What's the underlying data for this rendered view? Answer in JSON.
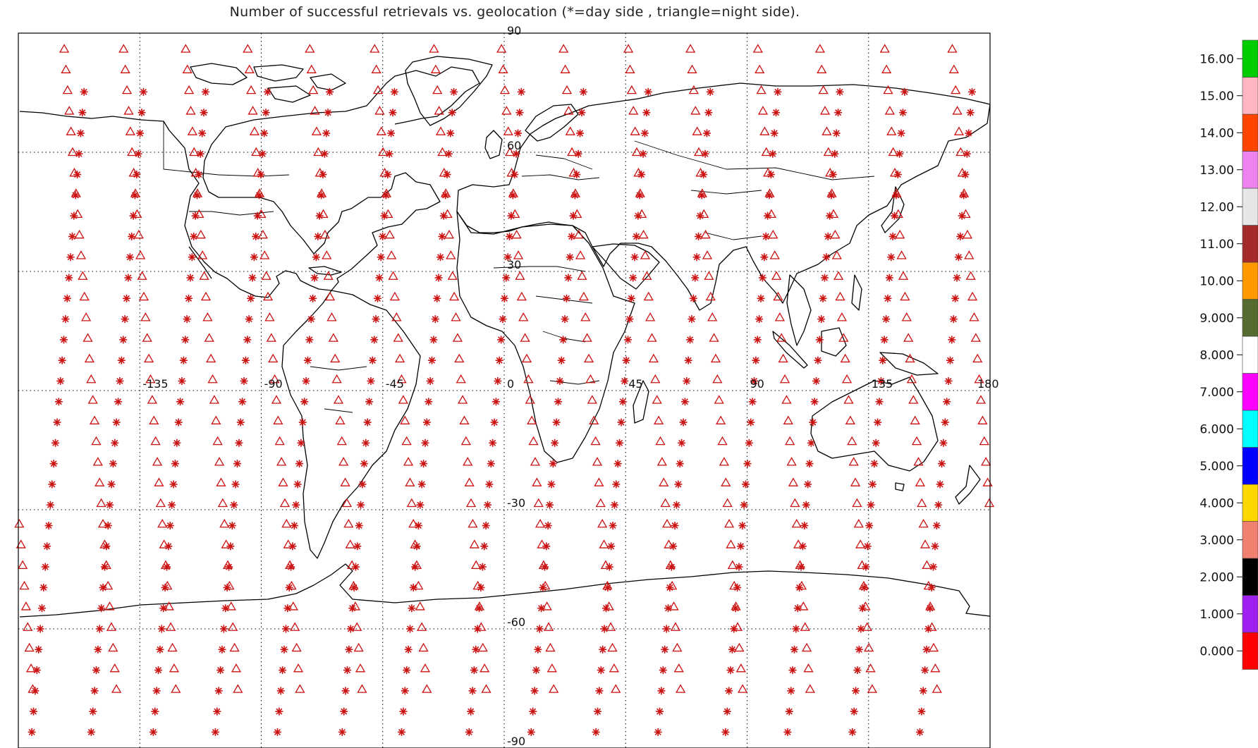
{
  "title": "Number of successful retrievals vs. geolocation (*=day side , triangle=night side).",
  "map": {
    "projection": "equirectangular",
    "lon_range": [
      -180,
      180
    ],
    "lat_range": [
      -90,
      90
    ],
    "grid": "dotted",
    "lon_tick_labels": [
      {
        "lon": -135,
        "text": "-135"
      },
      {
        "lon": -90,
        "text": "-90"
      },
      {
        "lon": -45,
        "text": "-45"
      },
      {
        "lon": 0,
        "text": "0"
      },
      {
        "lon": 45,
        "text": "45"
      },
      {
        "lon": 90,
        "text": "90"
      },
      {
        "lon": 135,
        "text": "135"
      },
      {
        "lon": 180,
        "text": "180"
      }
    ],
    "lat_tick_labels": [
      {
        "lat": 90,
        "text": "90"
      },
      {
        "lat": 60,
        "text": "60"
      },
      {
        "lat": 30,
        "text": "30"
      },
      {
        "lat": -30,
        "text": "-30"
      },
      {
        "lat": -60,
        "text": "-60"
      },
      {
        "lat": -90,
        "text": "-90"
      }
    ],
    "marker_color": "#cc1111",
    "markers": {
      "day": "asterisk",
      "night": "triangle"
    },
    "tracks": [
      {
        "lon": -172
      },
      {
        "lon": -150
      },
      {
        "lon": -127
      },
      {
        "lon": -104
      },
      {
        "lon": -81
      },
      {
        "lon": -57
      },
      {
        "lon": -35
      },
      {
        "lon": -10
      },
      {
        "lon": 13
      },
      {
        "lon": 37
      },
      {
        "lon": 60
      },
      {
        "lon": 85
      },
      {
        "lon": 108
      },
      {
        "lon": 132
      },
      {
        "lon": 157
      }
    ]
  },
  "colorbar": {
    "items": [
      {
        "value": 0,
        "label": "0.000",
        "color": "#ff0000"
      },
      {
        "value": 1,
        "label": "1.000",
        "color": "#a020f0"
      },
      {
        "value": 2,
        "label": "2.000",
        "color": "#000000"
      },
      {
        "value": 3,
        "label": "3.000",
        "color": "#f08070"
      },
      {
        "value": 4,
        "label": "4.000",
        "color": "#ffd700"
      },
      {
        "value": 5,
        "label": "5.000",
        "color": "#0000ff"
      },
      {
        "value": 6,
        "label": "6.000",
        "color": "#00ffff"
      },
      {
        "value": 7,
        "label": "7.000",
        "color": "#ff00ff"
      },
      {
        "value": 8,
        "label": "8.000",
        "color": "#ffffff"
      },
      {
        "value": 9,
        "label": "9.000",
        "color": "#556b2f"
      },
      {
        "value": 10,
        "label": "10.00",
        "color": "#ff9900"
      },
      {
        "value": 11,
        "label": "11.00",
        "color": "#a52a2a"
      },
      {
        "value": 12,
        "label": "12.00",
        "color": "#e6e6e6"
      },
      {
        "value": 13,
        "label": "13.00",
        "color": "#ee82ee"
      },
      {
        "value": 14,
        "label": "14.00",
        "color": "#ff4500"
      },
      {
        "value": 15,
        "label": "15.00",
        "color": "#ffb6c1"
      },
      {
        "value": 16,
        "label": "16.00",
        "color": "#00cc00"
      }
    ]
  }
}
